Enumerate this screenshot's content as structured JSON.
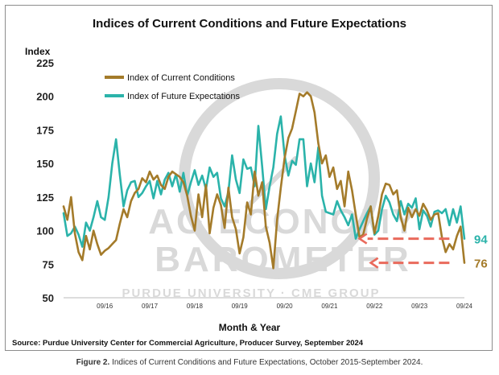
{
  "title": "Indices of Current Conditions and Future Expectations",
  "source": "Source: Purdue University Center for Commercial Agriculture, Producer Survey, September 2024",
  "caption": {
    "label": "Figure 2.",
    "text": "Indices of Current Conditions and Future Expectations, October 2015-September 2024."
  },
  "watermark": {
    "line1": "AG ECONOMY",
    "line2": "BAROMETER",
    "line3": "PURDUE UNIVERSITY · CME GROUP"
  },
  "colors": {
    "current": "#a47b2a",
    "future": "#2bb3aa",
    "arrow": "#e96a5c",
    "watermark": "#d9d9d9"
  },
  "chart_data": {
    "type": "line",
    "title": "Indices of Current Conditions and Future Expectations",
    "xlabel": "Month & Year",
    "ylabel": "Index",
    "ylim": [
      50,
      225
    ],
    "yticks": [
      50,
      75,
      100,
      125,
      150,
      175,
      200,
      225
    ],
    "x_tick_labels": [
      "09/16",
      "09/17",
      "09/18",
      "09/19",
      "09/20",
      "09/21",
      "09/22",
      "09/23",
      "09/24"
    ],
    "x_tick_index": [
      11,
      23,
      35,
      47,
      59,
      71,
      83,
      95,
      107
    ],
    "x_start": "2015-10",
    "x_end": "2024-09",
    "legend_position": "top-left",
    "grid": false,
    "series": [
      {
        "name": "Index of Current Conditions",
        "color": "#a47b2a",
        "end_label": "76",
        "values": [
          118,
          108,
          125,
          98,
          84,
          78,
          96,
          86,
          100,
          90,
          82,
          85,
          87,
          90,
          93,
          105,
          116,
          110,
          122,
          128,
          131,
          139,
          136,
          144,
          138,
          141,
          134,
          131,
          140,
          144,
          142,
          140,
          136,
          126,
          111,
          100,
          127,
          110,
          134,
          98,
          117,
          127,
          119,
          102,
          132,
          110,
          101,
          83,
          95,
          121,
          112,
          144,
          126,
          136,
          103,
          91,
          72,
          108,
          132,
          154,
          169,
          176,
          189,
          202,
          200,
          203,
          200,
          188,
          165,
          150,
          156,
          140,
          147,
          131,
          137,
          118,
          144,
          130,
          112,
          95,
          97,
          109,
          118,
          98,
          111,
          127,
          135,
          134,
          127,
          130,
          110,
          100,
          117,
          110,
          116,
          111,
          120,
          115,
          108,
          112,
          113,
          95,
          84,
          90,
          86,
          96,
          103,
          76
        ]
      },
      {
        "name": "Index of Future Expectations",
        "color": "#2bb3aa",
        "end_label": "94",
        "values": [
          113,
          96,
          98,
          103,
          97,
          88,
          106,
          100,
          110,
          122,
          110,
          108,
          125,
          150,
          168,
          142,
          118,
          130,
          136,
          137,
          125,
          128,
          133,
          137,
          124,
          137,
          127,
          138,
          143,
          133,
          142,
          129,
          143,
          126,
          136,
          145,
          134,
          141,
          131,
          147,
          140,
          143,
          124,
          118,
          129,
          156,
          138,
          128,
          153,
          146,
          147,
          133,
          178,
          148,
          116,
          133,
          147,
          172,
          185,
          156,
          141,
          152,
          149,
          168,
          168,
          133,
          150,
          136,
          162,
          126,
          114,
          113,
          112,
          122,
          115,
          110,
          104,
          112,
          94,
          101,
          107,
          113,
          118,
          97,
          100,
          116,
          126,
          121,
          112,
          107,
          122,
          112,
          120,
          117,
          124,
          101,
          115,
          111,
          103,
          114,
          115,
          113,
          116,
          104,
          116,
          106,
          118,
          94
        ]
      }
    ]
  }
}
